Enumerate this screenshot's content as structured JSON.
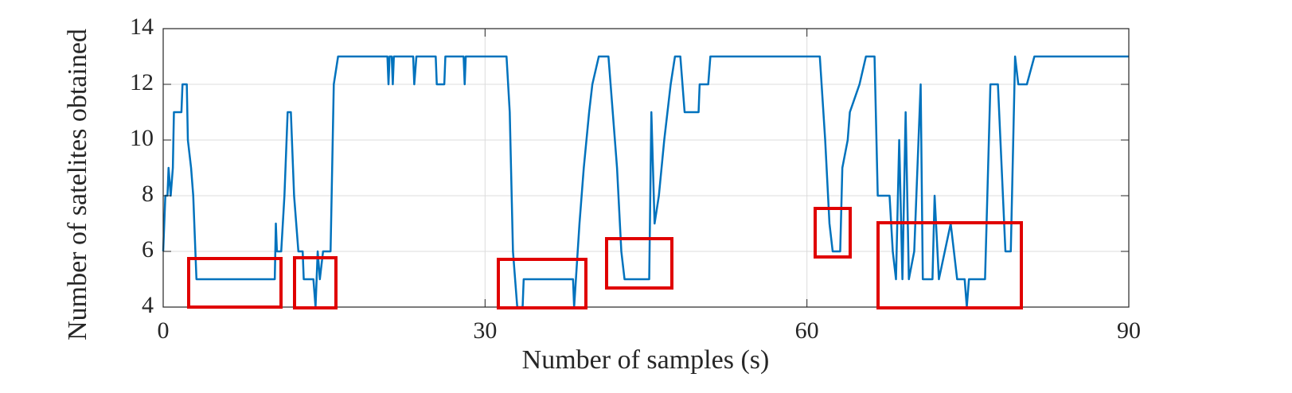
{
  "chart_data": {
    "type": "line",
    "xlabel": "Number of samples (s)",
    "ylabel": "Number of satelites obtained",
    "x": [
      0,
      0.2,
      0.4,
      0.5,
      0.7,
      0.9,
      1.0,
      1.7,
      1.8,
      2.2,
      2.3,
      2.6,
      2.8,
      3.1,
      10.4,
      10.5,
      10.6,
      11.0,
      11.3,
      11.6,
      11.9,
      12.0,
      12.2,
      12.6,
      13.0,
      13.1,
      14.0,
      14.2,
      14.4,
      14.6,
      14.9,
      15.6,
      15.9,
      16.3,
      20.9,
      21.0,
      21.1,
      21.3,
      21.4,
      21.5,
      23.3,
      23.4,
      23.6,
      25.4,
      25.5,
      26.2,
      26.3,
      28.0,
      28.1,
      28.2,
      32.0,
      32.3,
      32.6,
      33.0,
      33.5,
      33.6,
      38.2,
      38.3,
      38.8,
      39.2,
      39.7,
      40.0,
      40.6,
      41.5,
      41.9,
      42.3,
      42.7,
      43.0,
      45.3,
      45.5,
      45.8,
      46.2,
      46.7,
      47.3,
      47.7,
      48.2,
      48.6,
      49.9,
      50.0,
      50.8,
      51.0,
      61.2,
      61.7,
      62.1,
      62.4,
      63.1,
      63.3,
      63.8,
      64.0,
      64.9,
      65.5,
      66.3,
      66.6,
      67.7,
      68.0,
      68.3,
      68.6,
      68.9,
      69.2,
      69.5,
      70.0,
      70.6,
      70.8,
      71.7,
      71.9,
      72.3,
      73.4,
      74.0,
      74.7,
      74.9,
      75.1,
      76.6,
      77.1,
      77.8,
      78.5,
      79.0,
      79.4,
      79.7,
      80.5,
      81.2,
      90
    ],
    "series": [
      {
        "color": "#0072bd",
        "values": [
          6,
          8,
          8,
          9,
          8,
          9,
          11,
          11,
          12,
          12,
          10,
          9,
          8,
          5,
          5,
          7,
          6,
          6,
          8,
          11,
          11,
          10,
          8,
          6,
          6,
          5,
          5,
          4,
          6,
          5,
          6,
          6,
          12,
          13,
          13,
          12,
          13,
          13,
          12,
          13,
          13,
          12,
          13,
          13,
          12,
          12,
          13,
          13,
          12,
          13,
          13,
          11,
          6,
          4,
          4,
          5,
          5,
          4,
          7,
          9,
          11,
          12,
          13,
          13,
          11,
          9,
          6,
          5,
          5,
          11,
          7,
          8,
          10,
          12,
          13,
          13,
          11,
          11,
          12,
          12,
          13,
          13,
          10,
          7,
          6,
          6,
          9,
          10,
          11,
          12,
          13,
          13,
          8,
          8,
          6,
          5,
          10,
          5,
          11,
          5,
          6,
          12,
          5,
          5,
          8,
          5,
          7,
          5,
          5,
          4,
          5,
          5,
          12,
          12,
          6,
          6,
          13,
          12,
          12,
          13,
          13
        ]
      }
    ],
    "xlim": [
      0,
      90
    ],
    "xticks": [
      0,
      30,
      60,
      90
    ],
    "ylim": [
      4,
      14
    ],
    "yticks": [
      4,
      6,
      8,
      10,
      12,
      14
    ],
    "grid": true
  }
}
